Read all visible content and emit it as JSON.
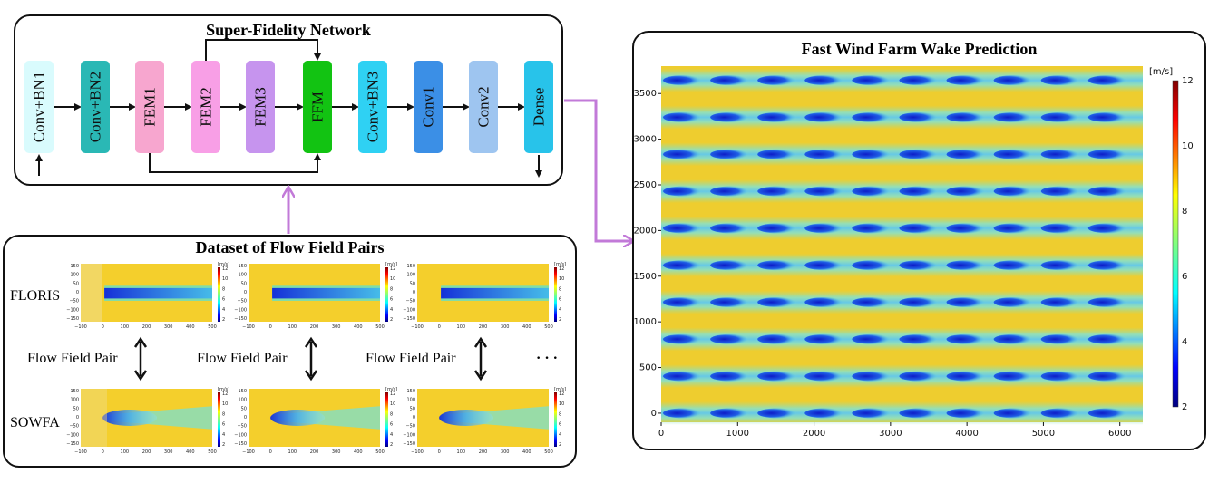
{
  "network": {
    "title": "Super-Fidelity Network",
    "blocks": [
      {
        "label": "Conv+BN1",
        "color": "#d9fbfd"
      },
      {
        "label": "Conv+BN2",
        "color": "#2ab8b5"
      },
      {
        "label": "FEM1",
        "color": "#f7a6cf"
      },
      {
        "label": "FEM2",
        "color": "#f89fe6"
      },
      {
        "label": "FEM3",
        "color": "#c694ee"
      },
      {
        "label": "FFM",
        "color": "#12c312"
      },
      {
        "label": "Conv+BN3",
        "color": "#2fd1f3"
      },
      {
        "label": "Conv1",
        "color": "#3b8fe6"
      },
      {
        "label": "Conv2",
        "color": "#9ec5f0"
      },
      {
        "label": "Dense",
        "color": "#28c3ea"
      }
    ]
  },
  "dataset": {
    "title": "Dataset of Flow Field Pairs",
    "row_labels": [
      "FLORIS",
      "SOWFA"
    ],
    "pair_labels": [
      "Flow Field Pair",
      "Flow Field Pair",
      "Flow Field Pair"
    ],
    "ellipsis": "· · ·",
    "mini_xticks": [
      "−100",
      "0",
      "100",
      "200",
      "300",
      "400",
      "500"
    ],
    "mini_yticks": [
      "150",
      "100",
      "50",
      "0",
      "−50",
      "−100",
      "−150"
    ],
    "mini_cbar_unit": "[m/s]",
    "mini_cbar_ticks": [
      "12",
      "10",
      "8",
      "6",
      "4",
      "2"
    ]
  },
  "prediction": {
    "title": "Fast Wind Farm Wake Prediction",
    "x_ticks": [
      "0",
      "1000",
      "2000",
      "3000",
      "4000",
      "5000",
      "6000"
    ],
    "y_ticks": [
      "3500",
      "3000",
      "2500",
      "2000",
      "1500",
      "1000",
      "500",
      "0"
    ],
    "colorbar_unit": "[m/s]",
    "colorbar_ticks": [
      "12",
      "10",
      "8",
      "6",
      "4",
      "2"
    ],
    "rows": 10,
    "cols": 10
  },
  "colors": {
    "arrow_purple": "#c27ad8",
    "field_yellow": "#f4cf2c",
    "wake_blue": "#1c2ad8"
  },
  "chart_data": {
    "type": "heatmap",
    "title": "Fast Wind Farm Wake Prediction",
    "colorbar_label": "[m/s]",
    "colorbar_range": [
      2,
      12
    ],
    "xlim": [
      0,
      6300
    ],
    "ylim": [
      -100,
      3800
    ],
    "turbine_grid": {
      "rows": 10,
      "cols": 10
    }
  }
}
